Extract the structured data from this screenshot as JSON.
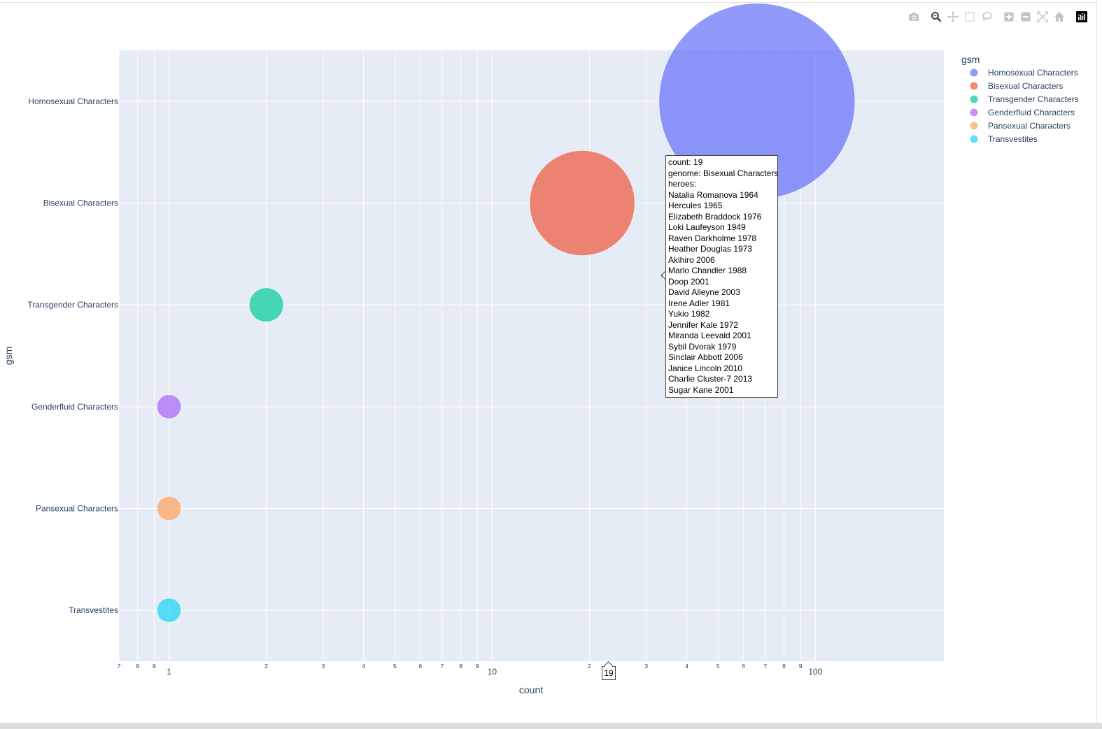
{
  "toolbar": {
    "icons": [
      "camera-icon",
      "zoom-icon",
      "pan-icon",
      "box-select-icon",
      "lasso-icon",
      "zoom-in-icon",
      "zoom-out-icon",
      "autoscale-icon",
      "reset-axes-icon",
      "plotly-logo-icon"
    ]
  },
  "chart_data": {
    "type": "scatter",
    "mode": "bubble",
    "title": "",
    "xlabel": "count",
    "ylabel": "gsm",
    "x_scale": "log",
    "xlim": [
      0.7,
      250
    ],
    "categories": [
      "Homosexual Characters",
      "Bisexual Characters",
      "Transgender Characters",
      "Genderfluid Characters",
      "Pansexual Characters",
      "Transvestites"
    ],
    "x_ticks_major": [
      "1",
      "10",
      "100"
    ],
    "x_ticks_minor_labels": [
      "7",
      "8",
      "9",
      "2",
      "3",
      "4",
      "5",
      "6",
      "7",
      "8",
      "9",
      "2",
      "3",
      "4",
      "5",
      "6",
      "7",
      "8",
      "9"
    ],
    "x_ticks_minor_values": [
      0.7,
      0.8,
      0.9,
      2,
      3,
      4,
      5,
      6,
      7,
      8,
      9,
      20,
      30,
      40,
      50,
      60,
      70,
      80,
      90
    ],
    "grid": true,
    "legend": {
      "title": "gsm",
      "position": "top-right"
    },
    "series": [
      {
        "name": "Homosexual Characters",
        "x": 66,
        "y": "Homosexual Characters",
        "size": 66,
        "color": "#636efa"
      },
      {
        "name": "Bisexual Characters",
        "x": 19,
        "y": "Bisexual Characters",
        "size": 19,
        "color": "#EF553B"
      },
      {
        "name": "Transgender Characters",
        "x": 2,
        "y": "Transgender Characters",
        "size": 2,
        "color": "#00cc96"
      },
      {
        "name": "Genderfluid Characters",
        "x": 1,
        "y": "Genderfluid Characters",
        "size": 1,
        "color": "#ab63fa"
      },
      {
        "name": "Pansexual Characters",
        "x": 1,
        "y": "Pansexual Characters",
        "size": 1,
        "color": "#FFA15A"
      },
      {
        "name": "Transvestites",
        "x": 1,
        "y": "Transvestites",
        "size": 1,
        "color": "#19d3f3"
      }
    ],
    "hover": {
      "lines": [
        "count: 19",
        "genome: Bisexual Characters",
        "heroes:",
        "Natalia Romanova 1964",
        "Hercules 1965",
        "Elizabeth Braddock 1976",
        "Loki Laufeyson 1949",
        "Raven Darkholme 1978",
        "Heather Douglas 1973",
        "Akihiro 2006",
        "Marlo Chandler 1988",
        "Doop 2001",
        "David Alleyne 2003",
        "Irene Adler 1981",
        "Yukio 1982",
        "Jennifer Kale 1972",
        "Miranda Leevald 2001",
        "Sybil Dvorak 1979",
        "Sinclair Abbott 2006",
        "Janice Lincoln 2010",
        "Charlie Cluster-7 2013",
        "Sugar Kane 2001"
      ],
      "spike_label": "19"
    }
  }
}
